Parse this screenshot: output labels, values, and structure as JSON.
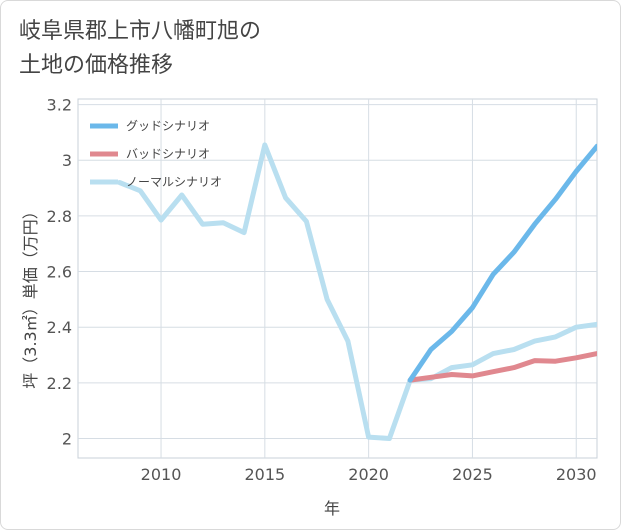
{
  "title_lines": [
    "岐阜県郡上市八幡町旭の",
    "土地の価格推移"
  ],
  "chart_data": {
    "type": "line",
    "title": "岐阜県郡上市八幡町旭の土地の価格推移",
    "xlabel": "年",
    "ylabel": "坪（3.3㎡）単価（万円）",
    "xlim": [
      2006,
      2031
    ],
    "ylim": [
      1.93,
      3.22
    ],
    "xticks": [
      2010,
      2015,
      2020,
      2025,
      2030
    ],
    "yticks": [
      2,
      2.2,
      2.4,
      2.6,
      2.8,
      3,
      3.2
    ],
    "ytick_labels": [
      "2",
      "2.2",
      "2.4",
      "2.6",
      "2.8",
      "3",
      "3.2"
    ],
    "legend_position": "top-left",
    "series": [
      {
        "name": "グッドシナリオ",
        "color": "#6bb8ea",
        "x": [
          2022,
          2023,
          2024,
          2025,
          2026,
          2027,
          2028,
          2029,
          2030,
          2031
        ],
        "values": [
          2.21,
          2.32,
          2.385,
          2.47,
          2.59,
          2.67,
          2.77,
          2.86,
          2.96,
          3.05
        ]
      },
      {
        "name": "バッドシナリオ",
        "color": "#e0888f",
        "x": [
          2022,
          2023,
          2024,
          2025,
          2026,
          2027,
          2028,
          2029,
          2030,
          2031
        ],
        "values": [
          2.21,
          2.22,
          2.23,
          2.225,
          2.24,
          2.255,
          2.28,
          2.278,
          2.29,
          2.305
        ]
      },
      {
        "name": "ノーマルシナリオ",
        "color": "#b9dff0",
        "x": [
          2008,
          2009,
          2010,
          2011,
          2012,
          2013,
          2014,
          2015,
          2016,
          2017,
          2018,
          2019,
          2020,
          2021,
          2022,
          2023,
          2024,
          2025,
          2026,
          2027,
          2028,
          2029,
          2030,
          2031
        ],
        "values": [
          2.92,
          2.89,
          2.785,
          2.875,
          2.77,
          2.775,
          2.74,
          3.055,
          2.865,
          2.78,
          2.5,
          2.35,
          2.005,
          2.0,
          2.21,
          2.215,
          2.255,
          2.265,
          2.305,
          2.32,
          2.35,
          2.365,
          2.4,
          2.41
        ]
      }
    ]
  }
}
